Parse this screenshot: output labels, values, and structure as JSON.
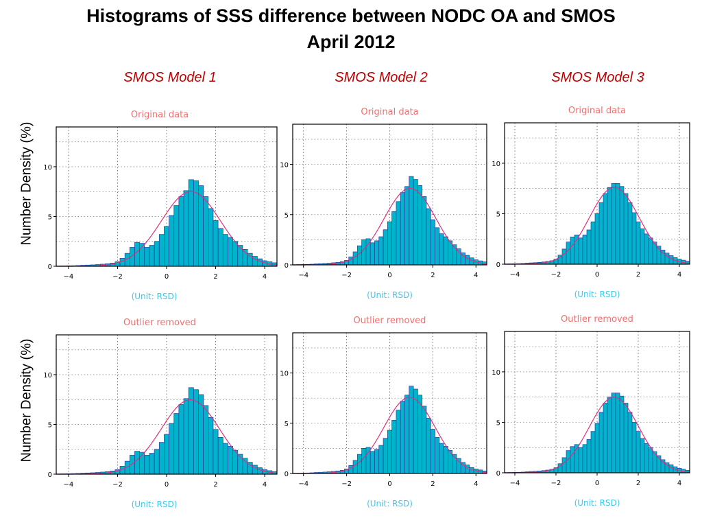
{
  "header": {
    "title_line1": "Histograms of SSS difference between NODC OA and SMOS",
    "title_line2": "April 2012"
  },
  "columns": [
    "SMOS Model 1",
    "SMOS Model 2",
    "SMOS Model 3"
  ],
  "ylabel": "Number Density (%)",
  "rows": [
    "Original data",
    "Outlier removed"
  ],
  "unit_label": "(Unit: RSD)",
  "colors": {
    "bar_fill": "#00b4cc",
    "bar_edge": "#2a3aa0",
    "curve": "#e0307a",
    "subtitle": "#f07070",
    "unit": "#40c8e8",
    "column_title": "#c00000"
  },
  "chart_data": [
    {
      "type": "bar",
      "panel": "Model 1 - Original data",
      "title": "Original data",
      "xlabel": "(Unit: RSD)",
      "ylabel": "Number Density (%)",
      "xlim": [
        -4.5,
        4.5
      ],
      "ylim": [
        0,
        14
      ],
      "xticks": [
        -4,
        -2,
        0,
        2,
        4
      ],
      "yticks": [
        0,
        5,
        10
      ],
      "bin_start": -4.5,
      "bin_width": 0.2,
      "values": [
        0.02,
        0.03,
        0.04,
        0.05,
        0.07,
        0.1,
        0.12,
        0.14,
        0.17,
        0.21,
        0.25,
        0.32,
        0.45,
        0.8,
        1.3,
        1.9,
        2.4,
        2.3,
        1.9,
        2.1,
        2.5,
        3.2,
        4.0,
        5.1,
        6.1,
        7.0,
        7.6,
        8.7,
        8.6,
        8.1,
        7.0,
        5.8,
        4.6,
        3.8,
        3.2,
        2.9,
        2.5,
        2.1,
        1.7,
        1.3,
        1.0,
        0.75,
        0.55,
        0.45,
        0.35
      ]
    },
    {
      "type": "bar",
      "panel": "Model 2 - Original data",
      "title": "Original data",
      "xlabel": "(Unit: RSD)",
      "ylabel": "Number Density (%)",
      "xlim": [
        -4.5,
        4.5
      ],
      "ylim": [
        0,
        14
      ],
      "xticks": [
        -4,
        -2,
        0,
        2,
        4
      ],
      "yticks": [
        0,
        5,
        10
      ],
      "bin_start": -4.5,
      "bin_width": 0.2,
      "values": [
        0.02,
        0.03,
        0.04,
        0.05,
        0.07,
        0.1,
        0.12,
        0.14,
        0.17,
        0.21,
        0.25,
        0.32,
        0.45,
        0.8,
        1.3,
        1.9,
        2.5,
        2.6,
        2.2,
        2.4,
        2.8,
        3.5,
        4.3,
        5.3,
        6.3,
        7.2,
        7.8,
        8.8,
        8.5,
        7.9,
        6.8,
        5.6,
        4.5,
        3.7,
        3.1,
        2.8,
        2.4,
        2.0,
        1.6,
        1.2,
        0.95,
        0.7,
        0.5,
        0.4,
        0.3
      ]
    },
    {
      "type": "bar",
      "panel": "Model 3 - Original data",
      "title": "Original data",
      "xlabel": "(Unit: RSD)",
      "ylabel": "Number Density (%)",
      "xlim": [
        -4.5,
        4.5
      ],
      "ylim": [
        0,
        14
      ],
      "xticks": [
        -4,
        -2,
        0,
        2,
        4
      ],
      "yticks": [
        0,
        5,
        10
      ],
      "bin_start": -4.5,
      "bin_width": 0.2,
      "values": [
        0.02,
        0.03,
        0.04,
        0.05,
        0.07,
        0.1,
        0.13,
        0.15,
        0.18,
        0.22,
        0.27,
        0.34,
        0.5,
        0.9,
        1.5,
        2.2,
        2.7,
        2.9,
        2.6,
        2.9,
        3.4,
        4.2,
        5.0,
        6.1,
        7.0,
        7.6,
        8.0,
        8.0,
        7.7,
        7.0,
        6.1,
        5.1,
        4.2,
        3.5,
        3.0,
        2.6,
        2.2,
        1.8,
        1.4,
        1.1,
        0.85,
        0.65,
        0.5,
        0.4,
        0.3
      ]
    },
    {
      "type": "bar",
      "panel": "Model 1 - Outlier removed",
      "title": "Outlier removed",
      "xlabel": "(Unit: RSD)",
      "ylabel": "Number Density (%)",
      "xlim": [
        -4.5,
        4.5
      ],
      "ylim": [
        0,
        14
      ],
      "xticks": [
        -4,
        -2,
        0,
        2,
        4
      ],
      "yticks": [
        0,
        5,
        10
      ],
      "bin_start": -4.5,
      "bin_width": 0.2,
      "values": [
        0.02,
        0.03,
        0.04,
        0.05,
        0.07,
        0.1,
        0.12,
        0.14,
        0.17,
        0.21,
        0.25,
        0.32,
        0.45,
        0.8,
        1.3,
        1.9,
        2.3,
        2.2,
        1.9,
        2.1,
        2.5,
        3.2,
        4.0,
        5.1,
        6.1,
        7.0,
        7.6,
        8.7,
        8.5,
        8.0,
        6.9,
        5.7,
        4.5,
        3.7,
        3.1,
        2.8,
        2.4,
        2.0,
        1.6,
        1.2,
        0.9,
        0.65,
        0.45,
        0.35,
        0.25
      ]
    },
    {
      "type": "bar",
      "panel": "Model 2 - Outlier removed",
      "title": "Outlier removed",
      "xlabel": "(Unit: RSD)",
      "ylabel": "Number Density (%)",
      "xlim": [
        -4.5,
        4.5
      ],
      "ylim": [
        0,
        14
      ],
      "xticks": [
        -4,
        -2,
        0,
        2,
        4
      ],
      "yticks": [
        0,
        5,
        10
      ],
      "bin_start": -4.5,
      "bin_width": 0.2,
      "values": [
        0.02,
        0.03,
        0.04,
        0.05,
        0.07,
        0.1,
        0.12,
        0.14,
        0.17,
        0.21,
        0.25,
        0.32,
        0.45,
        0.8,
        1.3,
        1.9,
        2.5,
        2.6,
        2.2,
        2.4,
        2.8,
        3.5,
        4.3,
        5.3,
        6.3,
        7.2,
        7.8,
        8.7,
        8.4,
        7.8,
        6.7,
        5.5,
        4.4,
        3.6,
        3.0,
        2.7,
        2.3,
        1.9,
        1.5,
        1.1,
        0.85,
        0.6,
        0.45,
        0.35,
        0.25
      ]
    },
    {
      "type": "bar",
      "panel": "Model 3 - Outlier removed",
      "title": "Outlier removed",
      "xlabel": "(Unit: RSD)",
      "ylabel": "Number Density (%)",
      "xlim": [
        -4.5,
        4.5
      ],
      "ylim": [
        0,
        14
      ],
      "xticks": [
        -4,
        -2,
        0,
        2,
        4
      ],
      "yticks": [
        0,
        5,
        10
      ],
      "bin_start": -4.5,
      "bin_width": 0.2,
      "values": [
        0.02,
        0.03,
        0.04,
        0.05,
        0.07,
        0.1,
        0.13,
        0.15,
        0.18,
        0.22,
        0.27,
        0.34,
        0.5,
        0.9,
        1.5,
        2.2,
        2.6,
        2.8,
        2.5,
        2.8,
        3.3,
        4.1,
        4.9,
        6.0,
        6.9,
        7.5,
        7.9,
        7.9,
        7.6,
        6.9,
        6.0,
        5.0,
        4.1,
        3.4,
        2.9,
        2.5,
        2.1,
        1.7,
        1.3,
        1.0,
        0.8,
        0.6,
        0.45,
        0.35,
        0.25
      ]
    }
  ]
}
